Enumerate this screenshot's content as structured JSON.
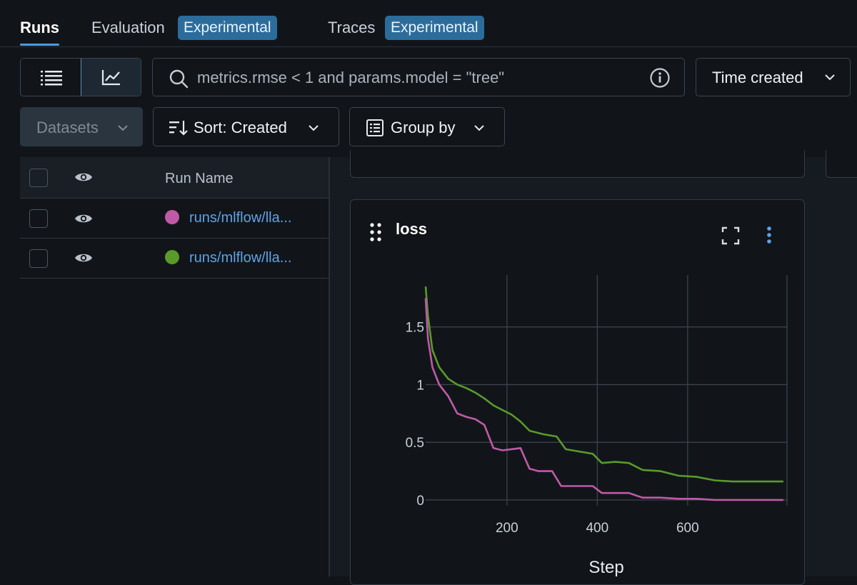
{
  "tabs": [
    {
      "label": "Runs"
    },
    {
      "label": "Evaluation",
      "badge": "Experimental"
    },
    {
      "label": "Traces",
      "badge": "Experimental"
    }
  ],
  "search": {
    "value": "metrics.rmse < 1 and params.model = \"tree\""
  },
  "time_created": "Time created",
  "toolbar": {
    "datasets": "Datasets",
    "sort": "Sort: Created",
    "group_by": "Group by"
  },
  "table": {
    "header": "Run Name",
    "rows": [
      {
        "name": "runs/mlflow/lla...",
        "color": "#c05aa6"
      },
      {
        "name": "runs/mlflow/lla...",
        "color": "#5a9a2a"
      }
    ]
  },
  "chart": {
    "title": "loss"
  },
  "chart_data": {
    "type": "line",
    "xlabel": "Step",
    "ylabel": "",
    "xticks": [
      200,
      400,
      600
    ],
    "yticks": [
      "1.5",
      "1",
      "0.5",
      "0"
    ],
    "xlim": [
      20,
      820
    ],
    "ylim": [
      -0.05,
      1.95
    ],
    "series": [
      {
        "color": "#5a9a2a",
        "x": [
          20,
          25,
          35,
          50,
          70,
          90,
          110,
          130,
          150,
          170,
          190,
          210,
          230,
          250,
          280,
          310,
          330,
          360,
          390,
          410,
          440,
          470,
          500,
          540,
          580,
          620,
          660,
          700,
          740,
          780,
          812
        ],
        "y": [
          1.85,
          1.6,
          1.3,
          1.15,
          1.05,
          1.0,
          0.97,
          0.93,
          0.88,
          0.82,
          0.78,
          0.74,
          0.68,
          0.6,
          0.57,
          0.55,
          0.44,
          0.42,
          0.4,
          0.32,
          0.33,
          0.32,
          0.26,
          0.25,
          0.21,
          0.2,
          0.17,
          0.16,
          0.16,
          0.16,
          0.16
        ]
      },
      {
        "color": "#c05aa6",
        "x": [
          20,
          25,
          35,
          50,
          70,
          90,
          110,
          130,
          150,
          170,
          190,
          210,
          230,
          250,
          270,
          300,
          320,
          340,
          360,
          390,
          410,
          440,
          470,
          500,
          540,
          580,
          620,
          660,
          700,
          740,
          780,
          812
        ],
        "y": [
          1.75,
          1.4,
          1.15,
          1.0,
          0.9,
          0.75,
          0.72,
          0.7,
          0.65,
          0.45,
          0.43,
          0.44,
          0.45,
          0.27,
          0.25,
          0.25,
          0.12,
          0.12,
          0.12,
          0.12,
          0.06,
          0.06,
          0.06,
          0.02,
          0.02,
          0.01,
          0.01,
          0.0,
          0.0,
          0.0,
          0.0,
          0.0
        ]
      }
    ]
  }
}
